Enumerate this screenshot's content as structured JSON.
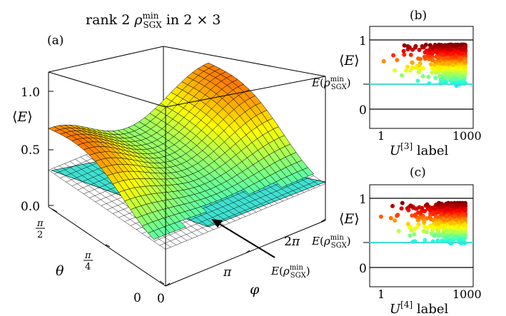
{
  "figure_title": "rank 2 ρSGX^min in 2 × 3",
  "chart_data": [
    {
      "panel": "(a)",
      "type": "surface",
      "title": "rank 2 ρ_SGX^min in 2 × 3",
      "zlabel": "⟨E⟩",
      "xlabel": "φ",
      "ylabel": "θ",
      "x_ticks": [
        "0",
        "π",
        "2π"
      ],
      "y_ticks": [
        "0",
        "π/4",
        "π/2"
      ],
      "z_ticks": [
        "0.0",
        "0.5",
        "1.0"
      ],
      "xlim": [
        0,
        6.283
      ],
      "ylim": [
        0,
        1.571
      ],
      "zlim": [
        0,
        1.1
      ],
      "plane_value": 0.33,
      "plane_label": "E(ρ_SGX^min)",
      "surface_range": [
        0.33,
        1.05
      ],
      "colormap": "jet"
    },
    {
      "panel": "(b)",
      "type": "scatter",
      "xlabel": "U^[3] label",
      "ylabel": "⟨E⟩",
      "x_ticks": [
        "1",
        "1000"
      ],
      "y_ticks": [
        "0",
        "1"
      ],
      "xlim": [
        1,
        1000
      ],
      "ylim": [
        -0.25,
        1.15
      ],
      "reference_line": {
        "label": "E(ρ_SGX^min)",
        "value": 0.33
      },
      "point_count": 1000,
      "value_range": [
        0.33,
        0.9
      ],
      "colormap": "jet"
    },
    {
      "panel": "(c)",
      "type": "scatter",
      "xlabel": "U^[4] label",
      "ylabel": "⟨E⟩",
      "x_ticks": [
        "1",
        "1000"
      ],
      "y_ticks": [
        "0",
        "1"
      ],
      "xlim": [
        1,
        1000
      ],
      "ylim": [
        -0.25,
        1.15
      ],
      "reference_line": {
        "label": "E(ρ_SGX^min)",
        "value": 0.33
      },
      "point_count": 1000,
      "value_range": [
        0.33,
        0.9
      ],
      "colormap": "jet"
    }
  ]
}
